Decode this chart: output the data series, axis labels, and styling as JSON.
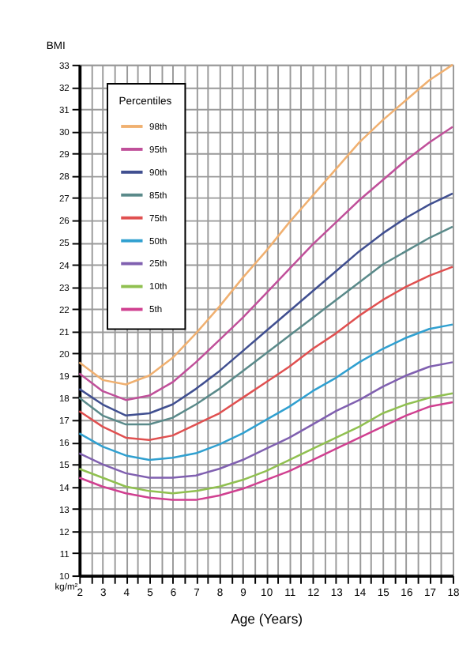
{
  "chart_data": {
    "type": "line",
    "xlabel": "Age (Years)",
    "ylabel": "BMI",
    "legend_title": "Percentiles",
    "legend": "top left",
    "grid": true,
    "marker": "none",
    "line_style": "solid",
    "x": [
      2,
      3,
      4,
      5,
      6,
      7,
      8,
      9,
      10,
      11,
      12,
      13,
      14,
      15,
      16,
      17,
      18
    ],
    "xlim": [
      2,
      18
    ],
    "xticks": [
      2,
      {
        "value": 2.5,
        "label": null
      },
      3,
      {
        "value": 3.5,
        "label": null
      },
      4,
      {
        "value": 4.5,
        "label": null
      },
      5,
      {
        "value": 5.5,
        "label": null
      },
      6,
      {
        "value": 6.5,
        "label": null
      },
      7,
      {
        "value": 7.5,
        "label": null
      },
      8,
      {
        "value": 8.5,
        "label": null
      },
      9,
      {
        "value": 9.5,
        "label": null
      },
      10,
      {
        "value": 10.5,
        "label": null
      },
      11,
      {
        "value": 11.5,
        "label": null
      },
      12,
      {
        "value": 12.5,
        "label": null
      },
      13,
      {
        "value": 13.5,
        "label": null
      },
      14,
      {
        "value": 14.5,
        "label": null
      },
      15,
      {
        "value": 15.5,
        "label": null
      },
      16,
      {
        "value": 16.5,
        "label": null
      },
      17,
      {
        "value": 17.5,
        "label": null
      },
      18
    ],
    "ylim": [
      10,
      33
    ],
    "yticks": [
      10,
      11,
      12,
      13,
      14,
      15,
      16,
      17,
      18,
      19,
      20,
      21,
      22,
      23,
      24,
      25,
      26,
      27,
      28,
      29,
      30,
      31,
      32,
      33
    ],
    "annotations": [
      "kg/m²"
    ],
    "series": [
      {
        "name": "98th",
        "color": "#f0b070",
        "values": [
          19.6,
          18.8,
          18.6,
          19.0,
          19.8,
          20.9,
          22.1,
          23.4,
          24.6,
          25.9,
          27.1,
          28.3,
          29.5,
          30.5,
          31.4,
          32.3,
          33.0
        ]
      },
      {
        "name": "95th",
        "color": "#c0509a",
        "values": [
          19.1,
          18.3,
          17.9,
          18.1,
          18.7,
          19.6,
          20.6,
          21.6,
          22.7,
          23.8,
          24.9,
          25.9,
          26.9,
          27.8,
          28.7,
          29.5,
          30.2
        ]
      },
      {
        "name": "90th",
        "color": "#404f90",
        "values": [
          18.4,
          17.7,
          17.2,
          17.3,
          17.7,
          18.4,
          19.2,
          20.1,
          21.0,
          21.9,
          22.8,
          23.7,
          24.6,
          25.4,
          26.1,
          26.7,
          27.2
        ]
      },
      {
        "name": "85th",
        "color": "#5a8a8a",
        "values": [
          18.0,
          17.2,
          16.8,
          16.8,
          17.1,
          17.7,
          18.4,
          19.2,
          20.0,
          20.8,
          21.6,
          22.4,
          23.2,
          24.0,
          24.6,
          25.2,
          25.7
        ]
      },
      {
        "name": "75th",
        "color": "#e05050",
        "values": [
          17.4,
          16.7,
          16.2,
          16.1,
          16.3,
          16.8,
          17.3,
          18.0,
          18.7,
          19.4,
          20.2,
          20.9,
          21.7,
          22.4,
          23.0,
          23.5,
          23.9
        ]
      },
      {
        "name": "50th",
        "color": "#30a0d0",
        "values": [
          16.4,
          15.8,
          15.4,
          15.2,
          15.3,
          15.5,
          15.9,
          16.4,
          17.0,
          17.6,
          18.3,
          18.9,
          19.6,
          20.2,
          20.7,
          21.1,
          21.3
        ]
      },
      {
        "name": "25th",
        "color": "#8060b0",
        "values": [
          15.5,
          15.0,
          14.6,
          14.4,
          14.4,
          14.5,
          14.8,
          15.2,
          15.7,
          16.2,
          16.8,
          17.4,
          17.9,
          18.5,
          19.0,
          19.4,
          19.6
        ]
      },
      {
        "name": "10th",
        "color": "#90c050",
        "values": [
          14.8,
          14.4,
          14.0,
          13.8,
          13.7,
          13.8,
          14.0,
          14.3,
          14.7,
          15.2,
          15.7,
          16.2,
          16.7,
          17.3,
          17.7,
          18.0,
          18.2
        ]
      },
      {
        "name": "5th",
        "color": "#d04090",
        "values": [
          14.4,
          14.0,
          13.7,
          13.5,
          13.4,
          13.4,
          13.6,
          13.9,
          14.3,
          14.7,
          15.2,
          15.7,
          16.2,
          16.7,
          17.2,
          17.6,
          17.8
        ]
      }
    ]
  }
}
